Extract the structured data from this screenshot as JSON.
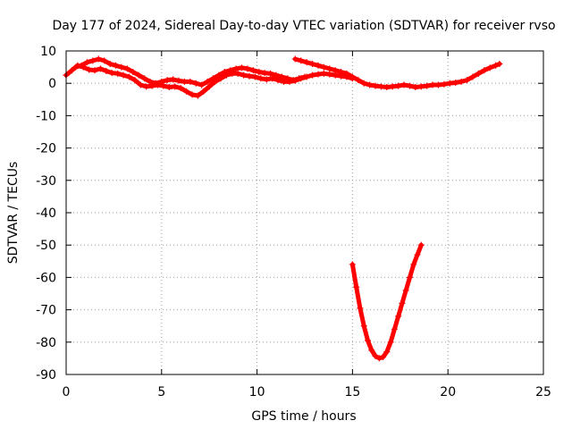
{
  "chart_data": {
    "type": "scatter",
    "title": "Day 177 of 2024, Sidereal Day-to-day VTEC variation (SDTVAR) for receiver rvso",
    "xlabel": "GPS time / hours",
    "ylabel": "SDTVAR / TECUs",
    "xlim": [
      0,
      25
    ],
    "ylim": [
      -90,
      10
    ],
    "xticks": [
      0,
      5,
      10,
      15,
      20,
      25
    ],
    "yticks": [
      10,
      0,
      -10,
      -20,
      -30,
      -40,
      -50,
      -60,
      -70,
      -80,
      -90
    ],
    "grid": true,
    "legend": "none",
    "color": "#ff0000",
    "series": [
      {
        "name": "arc-main-a",
        "x": [
          0.0,
          0.3,
          0.6,
          0.9,
          1.2,
          1.5,
          1.8,
          2.1,
          2.4,
          2.7,
          3.0,
          3.3,
          3.6,
          3.9,
          4.2,
          4.5,
          4.8,
          5.1,
          5.4,
          5.7,
          6.0,
          6.3,
          6.6,
          6.9,
          7.2,
          7.5,
          7.8,
          8.1,
          8.4,
          8.7,
          9.0,
          9.3,
          9.6,
          9.9,
          10.2,
          10.5,
          10.8,
          11.1,
          11.4,
          11.7,
          12.0,
          12.3,
          12.6,
          12.9,
          13.2,
          13.5,
          13.8,
          14.1,
          14.4,
          14.7,
          15.0
        ],
        "y": [
          2.5,
          4.0,
          5.5,
          5.0,
          4.2,
          4.0,
          4.5,
          3.8,
          3.2,
          3.0,
          2.5,
          2.0,
          1.0,
          -0.5,
          -1.0,
          -0.8,
          -0.5,
          -0.8,
          -1.2,
          -1.0,
          -1.5,
          -2.5,
          -3.5,
          -3.8,
          -2.5,
          -1.0,
          0.5,
          1.5,
          2.5,
          3.0,
          3.0,
          2.5,
          2.2,
          2.0,
          1.5,
          1.2,
          1.5,
          1.0,
          0.5,
          0.5,
          0.8,
          1.5,
          2.0,
          2.5,
          2.8,
          3.0,
          2.8,
          2.5,
          2.2,
          2.0,
          1.5
        ]
      },
      {
        "name": "arc-main-b",
        "x": [
          0.5,
          0.8,
          1.1,
          1.4,
          1.7,
          2.0,
          2.3,
          2.6,
          2.9,
          3.2,
          3.5,
          3.8,
          4.1,
          4.4,
          4.7,
          5.0,
          5.3,
          5.6,
          5.9,
          6.2,
          6.5,
          6.8,
          7.1,
          7.4,
          7.7,
          8.0,
          8.3,
          8.6,
          8.9,
          9.2,
          9.5,
          9.8,
          10.1,
          10.4,
          10.7,
          11.0,
          11.3,
          11.6,
          11.9,
          12.2,
          12.5
        ],
        "y": [
          5.0,
          5.5,
          6.5,
          7.0,
          7.5,
          7.0,
          6.0,
          5.5,
          5.0,
          4.5,
          3.5,
          2.5,
          1.5,
          0.5,
          0.0,
          0.5,
          1.0,
          1.2,
          0.8,
          0.5,
          0.5,
          0.0,
          -0.5,
          0.5,
          1.5,
          2.5,
          3.5,
          4.0,
          4.5,
          4.8,
          4.5,
          4.0,
          3.5,
          3.2,
          3.0,
          2.5,
          2.0,
          1.5,
          1.0,
          1.5,
          2.0
        ]
      },
      {
        "name": "arc-main-c",
        "x": [
          12.0,
          12.3,
          12.6,
          12.9,
          13.2,
          13.5,
          13.8,
          14.1,
          14.4,
          14.7,
          15.0,
          15.3,
          15.6,
          15.9,
          16.2,
          16.5,
          16.8,
          17.1,
          17.4,
          17.7,
          18.0,
          18.3,
          18.6,
          18.9,
          19.2,
          19.5,
          19.8,
          20.1,
          20.4,
          20.7,
          21.0,
          21.3,
          21.6,
          21.9,
          22.2,
          22.5,
          22.7
        ],
        "y": [
          7.5,
          7.0,
          6.5,
          6.0,
          5.5,
          5.0,
          4.5,
          4.0,
          3.5,
          3.0,
          2.0,
          1.0,
          0.0,
          -0.5,
          -0.8,
          -1.0,
          -1.2,
          -1.0,
          -0.8,
          -0.5,
          -0.8,
          -1.2,
          -1.0,
          -0.8,
          -0.5,
          -0.5,
          -0.3,
          0.0,
          0.2,
          0.5,
          1.0,
          2.0,
          3.0,
          4.0,
          4.8,
          5.5,
          6.0
        ]
      },
      {
        "name": "arc-dip",
        "x": [
          15.0,
          15.2,
          15.4,
          15.6,
          15.8,
          16.0,
          16.2,
          16.4,
          16.6,
          16.8,
          17.0,
          17.2,
          17.4,
          17.6,
          17.8,
          18.0,
          18.2,
          18.4,
          18.6
        ],
        "y": [
          -56.0,
          -63.0,
          -69.5,
          -75.0,
          -79.5,
          -82.5,
          -84.3,
          -85.0,
          -84.6,
          -83.0,
          -80.0,
          -76.0,
          -72.0,
          -68.0,
          -64.0,
          -60.0,
          -56.0,
          -53.0,
          -50.0
        ]
      }
    ]
  }
}
